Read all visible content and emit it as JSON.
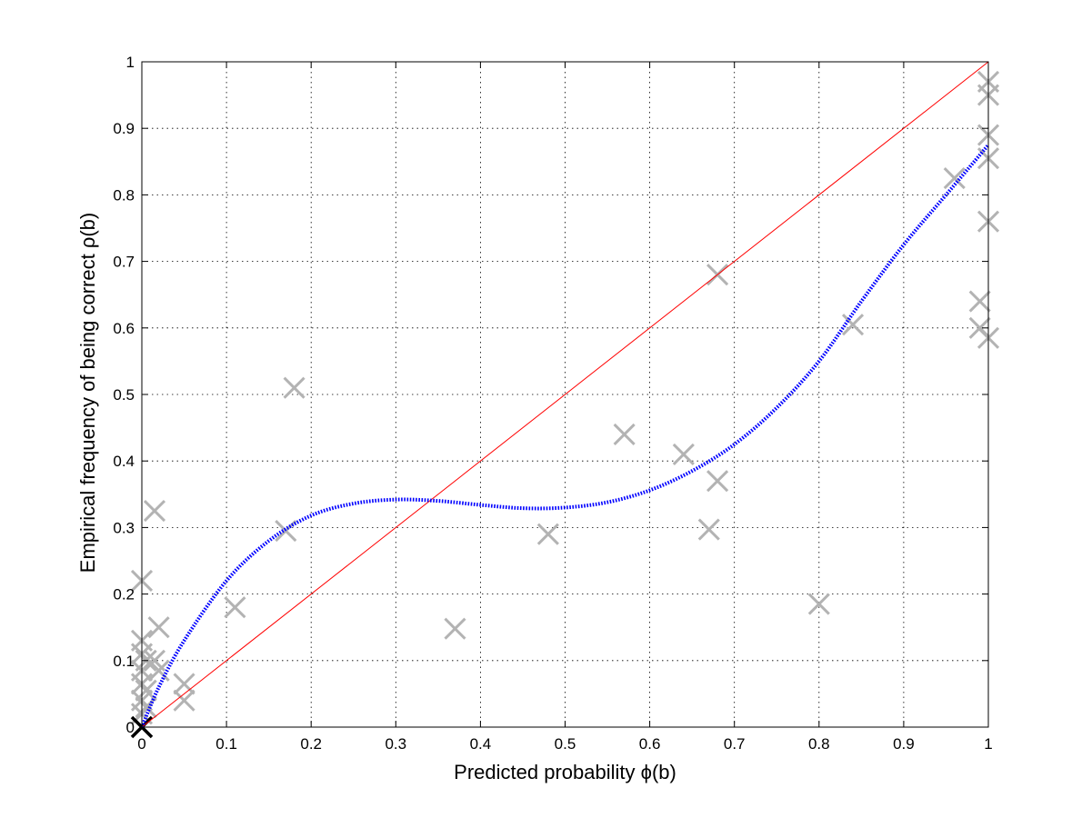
{
  "chart_data": {
    "type": "scatter",
    "title": "",
    "xlabel": "Predicted probability ϕ(b)",
    "ylabel": "Empirical frequency of being correct  ρ(b)",
    "xlim": [
      0,
      1
    ],
    "ylim": [
      0,
      1
    ],
    "xticks": [
      "0",
      "0.1",
      "0.2",
      "0.3",
      "0.4",
      "0.5",
      "0.6",
      "0.7",
      "0.8",
      "0.9",
      "1"
    ],
    "yticks": [
      "0",
      "0.1",
      "0.2",
      "0.3",
      "0.4",
      "0.5",
      "0.6",
      "0.7",
      "0.8",
      "0.9",
      "1"
    ],
    "grid": true,
    "legend": "none",
    "series": [
      {
        "kind": "scatter",
        "marker": "x",
        "color": "#b3b3b3",
        "points": [
          [
            0.0,
            0.22
          ],
          [
            0.0,
            0.13
          ],
          [
            0.0,
            0.11
          ],
          [
            0.005,
            0.1
          ],
          [
            0.0,
            0.085
          ],
          [
            0.0,
            0.065
          ],
          [
            0.005,
            0.055
          ],
          [
            0.0,
            0.04
          ],
          [
            0.005,
            0.03
          ],
          [
            0.0,
            0.02
          ],
          [
            0.015,
            0.325
          ],
          [
            0.02,
            0.15
          ],
          [
            0.015,
            0.1
          ],
          [
            0.02,
            0.085
          ],
          [
            0.05,
            0.065
          ],
          [
            0.05,
            0.04
          ],
          [
            0.11,
            0.18
          ],
          [
            0.18,
            0.51
          ],
          [
            0.17,
            0.295
          ],
          [
            0.37,
            0.148
          ],
          [
            0.48,
            0.29
          ],
          [
            0.57,
            0.44
          ],
          [
            0.64,
            0.41
          ],
          [
            0.68,
            0.37
          ],
          [
            0.67,
            0.297
          ],
          [
            0.68,
            0.68
          ],
          [
            0.8,
            0.185
          ],
          [
            0.84,
            0.605
          ],
          [
            0.96,
            0.825
          ],
          [
            0.99,
            0.64
          ],
          [
            0.99,
            0.6
          ],
          [
            1.0,
            0.585
          ],
          [
            1.0,
            0.76
          ],
          [
            1.0,
            0.855
          ],
          [
            1.0,
            0.89
          ],
          [
            1.0,
            0.95
          ],
          [
            1.0,
            0.97
          ]
        ]
      },
      {
        "kind": "scatter",
        "marker": "x",
        "color": "#000000",
        "points": [
          [
            0.0,
            0.0
          ]
        ]
      },
      {
        "kind": "line",
        "style": "solid",
        "color": "#ff0000",
        "x": [
          0,
          1
        ],
        "y": [
          0,
          1
        ]
      },
      {
        "kind": "line",
        "style": "dotted",
        "color": "#0000ff",
        "x": [
          0,
          0.02,
          0.05,
          0.1,
          0.15,
          0.2,
          0.25,
          0.3,
          0.35,
          0.4,
          0.45,
          0.5,
          0.55,
          0.6,
          0.65,
          0.7,
          0.75,
          0.8,
          0.85,
          0.9,
          0.95,
          1.0
        ],
        "y": [
          0,
          0.06,
          0.13,
          0.22,
          0.28,
          0.318,
          0.336,
          0.342,
          0.34,
          0.334,
          0.329,
          0.33,
          0.338,
          0.356,
          0.385,
          0.425,
          0.48,
          0.55,
          0.64,
          0.725,
          0.8,
          0.875
        ]
      }
    ]
  }
}
